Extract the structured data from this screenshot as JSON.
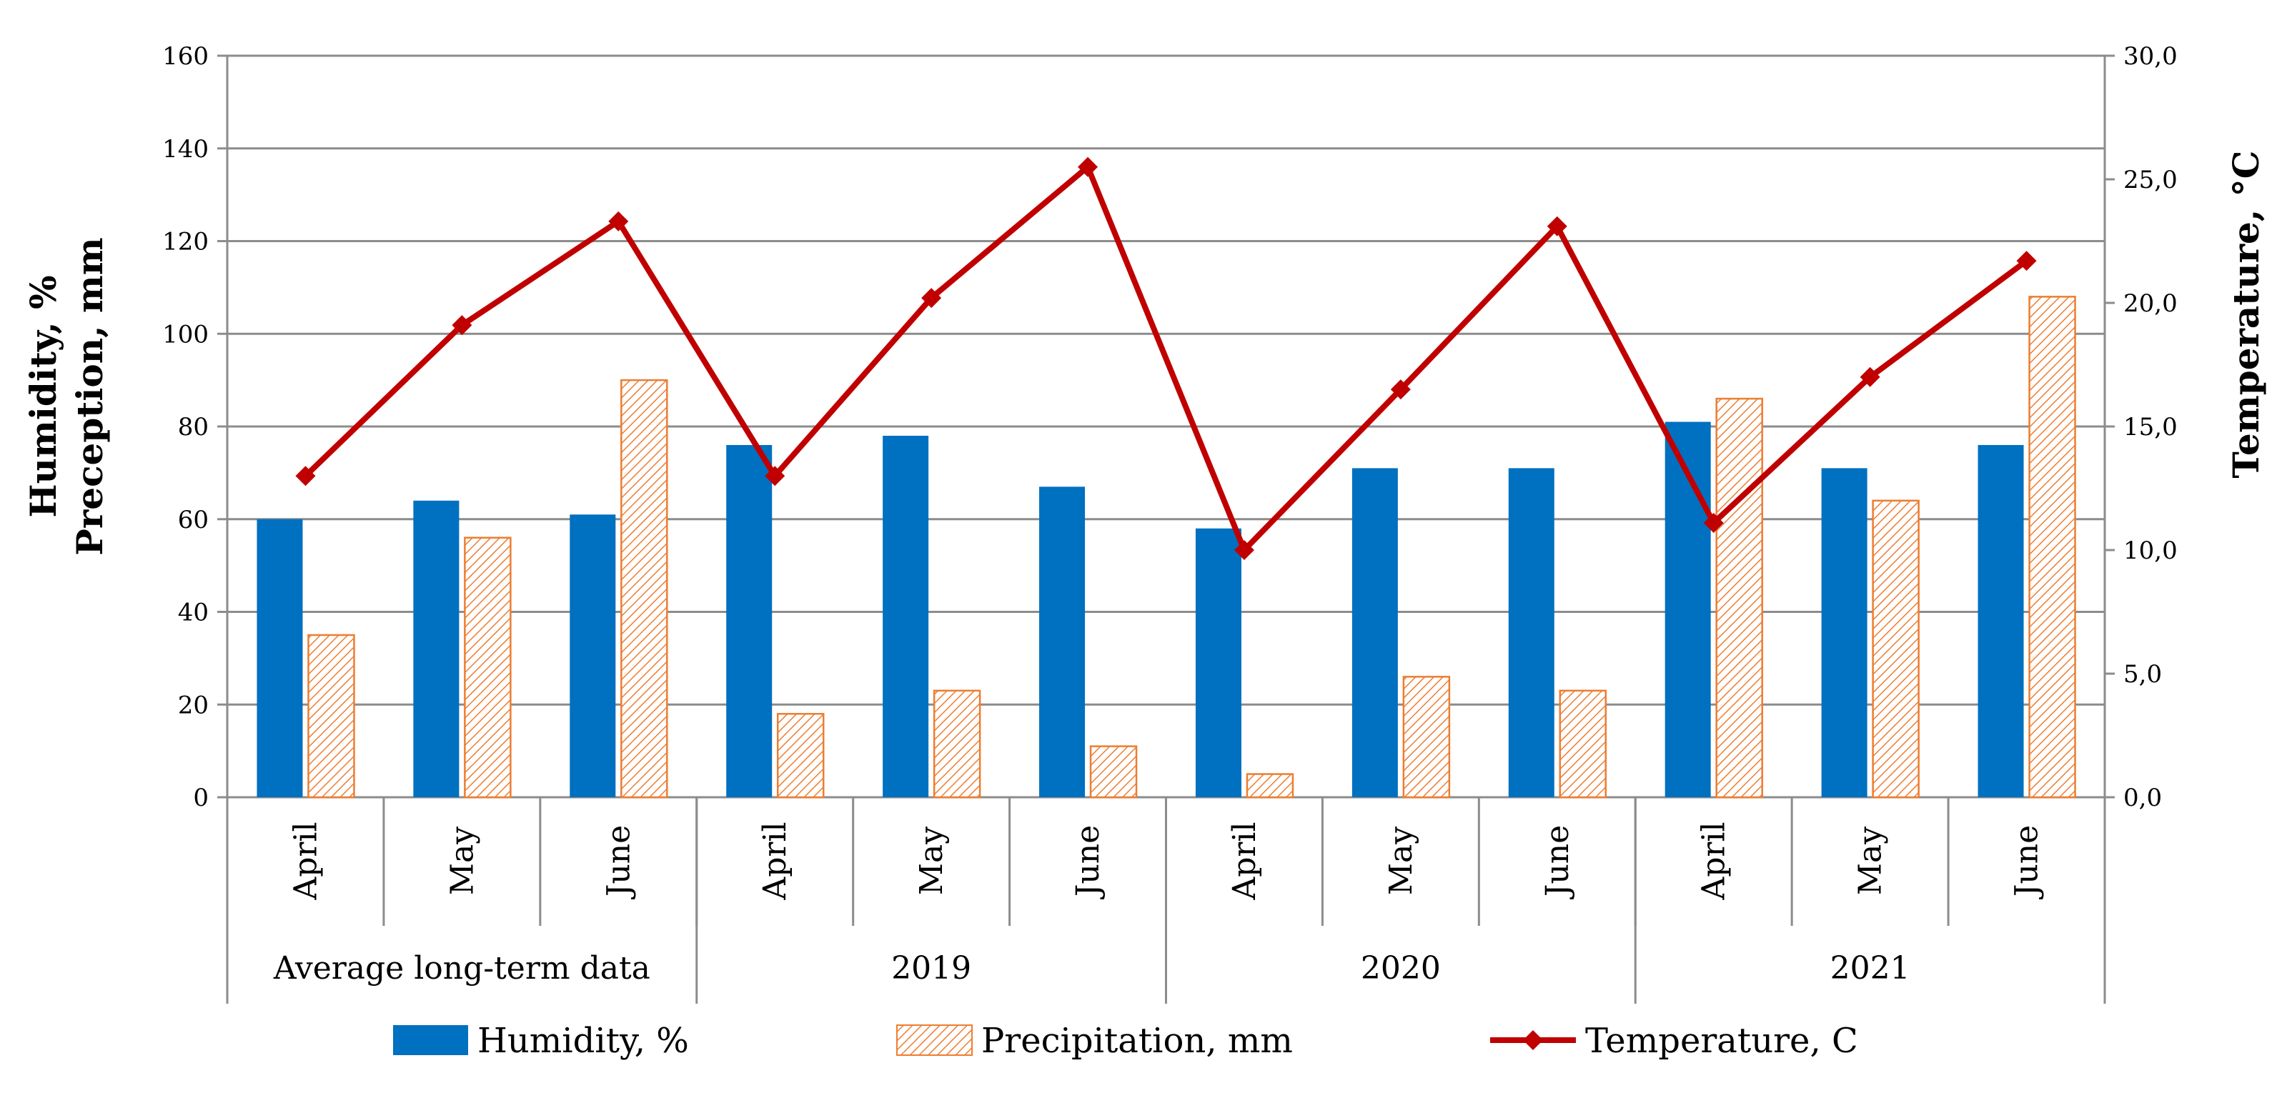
{
  "chart_data": {
    "type": "bar",
    "title": "",
    "categories": [
      "April",
      "May",
      "June",
      "April",
      "May",
      "June",
      "April",
      "May",
      "June",
      "April",
      "May",
      "June"
    ],
    "groups": [
      {
        "label": "Average long-term data",
        "span": 3
      },
      {
        "label": "2019",
        "span": 3
      },
      {
        "label": "2020",
        "span": 3
      },
      {
        "label": "2021",
        "span": 3
      }
    ],
    "series": [
      {
        "name": "Humidity, %",
        "type": "bar",
        "axis": "left",
        "color": "#0070C0",
        "values": [
          60,
          64,
          61,
          76,
          78,
          67,
          58,
          71,
          71,
          81,
          71,
          76
        ]
      },
      {
        "name": "Precipitation, mm",
        "type": "bar",
        "axis": "left",
        "color": "#ED7D31",
        "pattern": "hatched",
        "values": [
          35,
          56,
          90,
          18,
          23,
          11,
          5,
          26,
          23,
          86,
          64,
          108
        ]
      },
      {
        "name": "Temperature, C",
        "type": "line",
        "axis": "right",
        "color": "#C00000",
        "marker": "diamond",
        "values": [
          13.0,
          19.1,
          23.3,
          13.0,
          20.2,
          25.5,
          10.0,
          16.5,
          23.1,
          11.1,
          17.0,
          21.7
        ]
      }
    ],
    "ylabel_left_line1": "Humidity, %",
    "ylabel_left_line2": "Preception, mm",
    "ylabel_right": "Temperature, °C",
    "ylim_left": [
      0,
      160
    ],
    "ylim_right": [
      0,
      30
    ],
    "yticks_left": [
      "0",
      "20",
      "40",
      "60",
      "80",
      "100",
      "120",
      "140",
      "160"
    ],
    "yticks_right": [
      "0,0",
      "5,0",
      "10,0",
      "15,0",
      "20,0",
      "25,0",
      "30,0"
    ],
    "grid": true,
    "legend": "bottom"
  }
}
